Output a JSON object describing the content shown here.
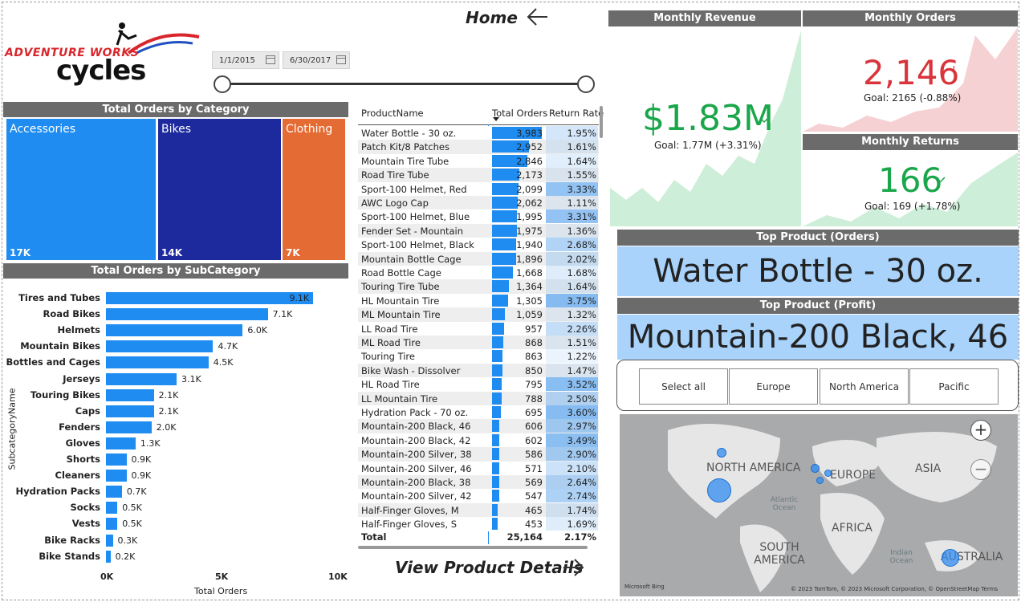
{
  "header": {
    "logo_top": "ADVENTURE WORKS",
    "logo_bottom": "cycles",
    "home_label": "Home",
    "date_start": "1/1/2015",
    "date_end": "6/30/2017"
  },
  "category": {
    "title": "Total Orders by Category",
    "items": [
      {
        "name": "Accessories",
        "value": "17K",
        "color": "#1e8cf0"
      },
      {
        "name": "Bikes",
        "value": "14K",
        "color": "#1c2a9e"
      },
      {
        "name": "Clothing",
        "value": "7K",
        "color": "#e56b34"
      }
    ]
  },
  "chart_data": {
    "type": "bar",
    "title": "Total Orders by SubCategory",
    "xlabel": "Total Orders",
    "ylabel": "SubcategoryName",
    "xlim": [
      0,
      10000
    ],
    "x_ticks": [
      "0K",
      "5K",
      "10K"
    ],
    "categories": [
      "Tires and Tubes",
      "Road Bikes",
      "Helmets",
      "Mountain Bikes",
      "Bottles and Cages",
      "Jerseys",
      "Touring Bikes",
      "Caps",
      "Fenders",
      "Gloves",
      "Shorts",
      "Cleaners",
      "Hydration Packs",
      "Socks",
      "Vests",
      "Bike Racks",
      "Bike Stands"
    ],
    "values": [
      9100,
      7100,
      6000,
      4700,
      4500,
      3100,
      2100,
      2100,
      2000,
      1300,
      900,
      900,
      700,
      500,
      500,
      300,
      200
    ],
    "labels": [
      "9.1K",
      "7.1K",
      "6.0K",
      "4.7K",
      "4.5K",
      "3.1K",
      "2.1K",
      "2.1K",
      "2.0K",
      "1.3K",
      "0.9K",
      "0.9K",
      "0.7K",
      "0.5K",
      "0.5K",
      "0.3K",
      "0.2K"
    ]
  },
  "table": {
    "headers": [
      "ProductName",
      "Total Orders",
      "Return Rate"
    ],
    "max_orders": 3983,
    "rows": [
      {
        "name": "Water Bottle - 30 oz.",
        "orders": "3,983",
        "ov": 3983,
        "rate": "1.95%",
        "rv": 1.95
      },
      {
        "name": "Patch Kit/8 Patches",
        "orders": "2,952",
        "ov": 2952,
        "rate": "1.61%",
        "rv": 1.61
      },
      {
        "name": "Mountain Tire Tube",
        "orders": "2,846",
        "ov": 2846,
        "rate": "1.64%",
        "rv": 1.64
      },
      {
        "name": "Road Tire Tube",
        "orders": "2,173",
        "ov": 2173,
        "rate": "1.55%",
        "rv": 1.55
      },
      {
        "name": "Sport-100 Helmet, Red",
        "orders": "2,099",
        "ov": 2099,
        "rate": "3.33%",
        "rv": 3.33
      },
      {
        "name": "AWC Logo Cap",
        "orders": "2,062",
        "ov": 2062,
        "rate": "1.11%",
        "rv": 1.11
      },
      {
        "name": "Sport-100 Helmet, Blue",
        "orders": "1,995",
        "ov": 1995,
        "rate": "3.31%",
        "rv": 3.31
      },
      {
        "name": "Fender Set - Mountain",
        "orders": "1,975",
        "ov": 1975,
        "rate": "1.36%",
        "rv": 1.36
      },
      {
        "name": "Sport-100 Helmet, Black",
        "orders": "1,940",
        "ov": 1940,
        "rate": "2.68%",
        "rv": 2.68
      },
      {
        "name": "Mountain Bottle Cage",
        "orders": "1,896",
        "ov": 1896,
        "rate": "2.02%",
        "rv": 2.02
      },
      {
        "name": "Road Bottle Cage",
        "orders": "1,668",
        "ov": 1668,
        "rate": "1.68%",
        "rv": 1.68
      },
      {
        "name": "Touring Tire Tube",
        "orders": "1,364",
        "ov": 1364,
        "rate": "1.64%",
        "rv": 1.64
      },
      {
        "name": "HL Mountain Tire",
        "orders": "1,305",
        "ov": 1305,
        "rate": "3.75%",
        "rv": 3.75
      },
      {
        "name": "ML Mountain Tire",
        "orders": "1,059",
        "ov": 1059,
        "rate": "1.32%",
        "rv": 1.32
      },
      {
        "name": "LL Road Tire",
        "orders": "957",
        "ov": 957,
        "rate": "2.26%",
        "rv": 2.26
      },
      {
        "name": "ML Road Tire",
        "orders": "868",
        "ov": 868,
        "rate": "1.51%",
        "rv": 1.51
      },
      {
        "name": "Touring Tire",
        "orders": "863",
        "ov": 863,
        "rate": "1.22%",
        "rv": 1.22
      },
      {
        "name": "Bike Wash - Dissolver",
        "orders": "850",
        "ov": 850,
        "rate": "1.47%",
        "rv": 1.47
      },
      {
        "name": "HL Road Tire",
        "orders": "795",
        "ov": 795,
        "rate": "3.52%",
        "rv": 3.52
      },
      {
        "name": "LL Mountain Tire",
        "orders": "788",
        "ov": 788,
        "rate": "2.50%",
        "rv": 2.5
      },
      {
        "name": "Hydration Pack - 70 oz.",
        "orders": "695",
        "ov": 695,
        "rate": "3.60%",
        "rv": 3.6
      },
      {
        "name": "Mountain-200 Black, 46",
        "orders": "606",
        "ov": 606,
        "rate": "2.97%",
        "rv": 2.97
      },
      {
        "name": "Mountain-200 Black, 42",
        "orders": "602",
        "ov": 602,
        "rate": "3.49%",
        "rv": 3.49
      },
      {
        "name": "Mountain-200 Silver, 38",
        "orders": "586",
        "ov": 586,
        "rate": "2.90%",
        "rv": 2.9
      },
      {
        "name": "Mountain-200 Silver, 46",
        "orders": "571",
        "ov": 571,
        "rate": "2.10%",
        "rv": 2.1
      },
      {
        "name": "Mountain-200 Black, 38",
        "orders": "569",
        "ov": 569,
        "rate": "2.64%",
        "rv": 2.64
      },
      {
        "name": "Mountain-200 Silver, 42",
        "orders": "547",
        "ov": 547,
        "rate": "2.74%",
        "rv": 2.74
      },
      {
        "name": "Half-Finger Gloves, M",
        "orders": "465",
        "ov": 465,
        "rate": "1.74%",
        "rv": 1.74
      },
      {
        "name": "Half-Finger Gloves, S",
        "orders": "453",
        "ov": 453,
        "rate": "1.69%",
        "rv": 1.69
      }
    ],
    "total_label": "Total",
    "total_orders": "25,164",
    "total_rate": "2.17%",
    "view_details": "View Product Details"
  },
  "kpis": {
    "revenue": {
      "title": "Monthly Revenue",
      "value": "$1.83M",
      "goal": "Goal: 1.77M (+3.31%)",
      "color": "#1aa64a"
    },
    "orders": {
      "title": "Monthly Orders",
      "value": "2,146",
      "goal": "Goal: 2165 (-0.88%)",
      "color": "#d9343c",
      "mark": "!"
    },
    "returns": {
      "title": "Monthly Returns",
      "value": "166",
      "goal": "Goal: 169 (+1.78%)",
      "color": "#1aa64a"
    }
  },
  "top_products": {
    "orders_title": "Top Product (Orders)",
    "orders_value": "Water Bottle - 30 oz.",
    "profit_title": "Top Product (Profit)",
    "profit_value": "Mountain-200 Black, 46"
  },
  "regions": [
    "Select all",
    "Europe",
    "North America",
    "Pacific"
  ],
  "map": {
    "labels": {
      "north_america": "NORTH AMERICA",
      "europe": "EUROPE",
      "asia": "ASIA",
      "africa": "AFRICA",
      "south_america": "SOUTH AMERICA",
      "australia": "AUSTRALIA"
    },
    "oceans": {
      "atlantic": "Atlantic Ocean",
      "indian": "Indian Ocean"
    },
    "attribution": "© 2023 TomTom, © 2023 Microsoft Corporation, © OpenStreetMap  Terms",
    "bing": "Microsoft Bing",
    "zoom_in": "+",
    "zoom_out": "−"
  }
}
